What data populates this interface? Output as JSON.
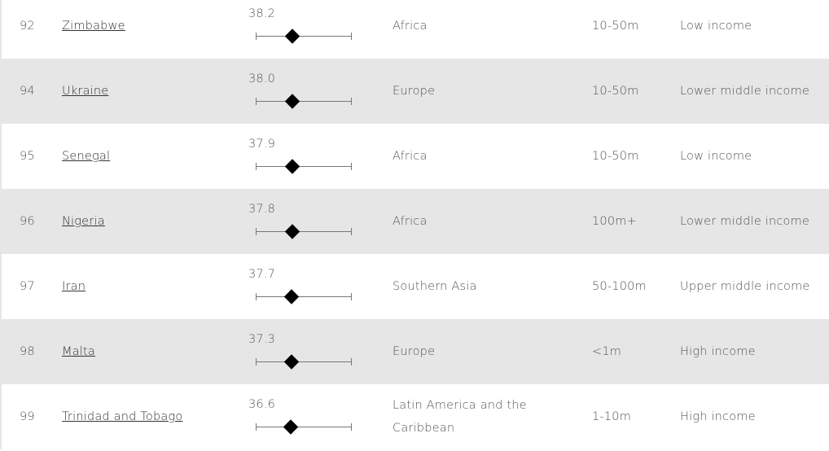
{
  "score_scale": [
    0,
    100
  ],
  "rows": [
    {
      "rank": "92",
      "country": "Zimbabwe",
      "score": 38.2,
      "score_label": "38.2",
      "region": "Africa",
      "population": "10-50m",
      "income": "Low income"
    },
    {
      "rank": "94",
      "country": "Ukraine",
      "score": 38.0,
      "score_label": "38.0",
      "region": "Europe",
      "population": "10-50m",
      "income": "Lower middle income"
    },
    {
      "rank": "95",
      "country": "Senegal",
      "score": 37.9,
      "score_label": "37.9",
      "region": "Africa",
      "population": "10-50m",
      "income": "Low income"
    },
    {
      "rank": "96",
      "country": "Nigeria",
      "score": 37.8,
      "score_label": "37.8",
      "region": "Africa",
      "population": "100m+",
      "income": "Lower middle income"
    },
    {
      "rank": "97",
      "country": "Iran",
      "score": 37.7,
      "score_label": "37.7",
      "region": "Southern Asia",
      "population": "50-100m",
      "income": "Upper middle income"
    },
    {
      "rank": "98",
      "country": "Malta",
      "score": 37.3,
      "score_label": "37.3",
      "region": "Europe",
      "population": "<1m",
      "income": "High income"
    },
    {
      "rank": "99",
      "country": "Trinidad and Tobago",
      "score": 36.6,
      "score_label": "36.6",
      "region": "Latin America and the Caribbean",
      "population": "1-10m",
      "income": "High income"
    }
  ]
}
